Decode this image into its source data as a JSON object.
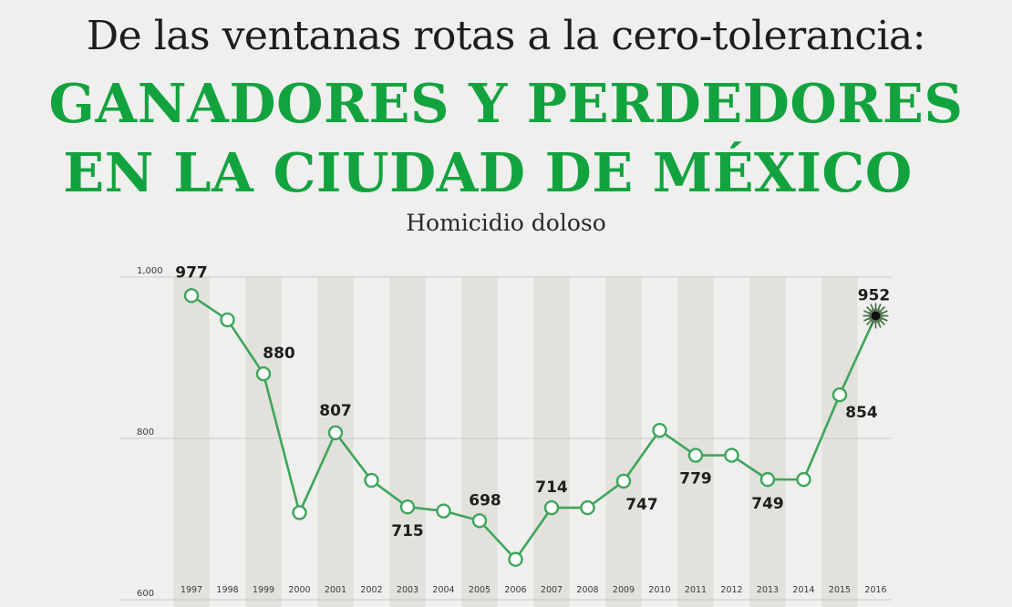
{
  "header": {
    "line1": "De las ventanas rotas a la cero-tolerancia:",
    "line2": "GANADORES Y PERDEDORES",
    "line3": "EN LA CIUDAD DE MÉXICO"
  },
  "chart_data": {
    "type": "line",
    "title": "Homicidio doloso",
    "x": [
      "1997",
      "1998",
      "1999",
      "2000",
      "2001",
      "2002",
      "2003",
      "2004",
      "2005",
      "2006",
      "2007",
      "2008",
      "2009",
      "2010",
      "2011",
      "2012",
      "2013",
      "2014",
      "2015",
      "2016"
    ],
    "values": [
      977,
      947,
      880,
      708,
      807,
      748,
      715,
      710,
      698,
      650,
      714,
      714,
      747,
      810,
      779,
      779,
      749,
      749,
      854,
      952
    ],
    "data_labels": {
      "1997": "977",
      "1999": "880",
      "2001": "807",
      "2003": "715",
      "2005": "698",
      "2007": "714",
      "2009": "747",
      "2011": "779",
      "2013": "749",
      "2015": "854",
      "2016": "952"
    },
    "ylim": [
      600,
      1000
    ],
    "yticks": [
      "600",
      "800",
      "1,000"
    ],
    "grid": true,
    "colors": {
      "line": "#3ea55c",
      "marker_fill": "#ffffff",
      "band": "#e2e1dc",
      "last_marker": "#111111"
    }
  }
}
